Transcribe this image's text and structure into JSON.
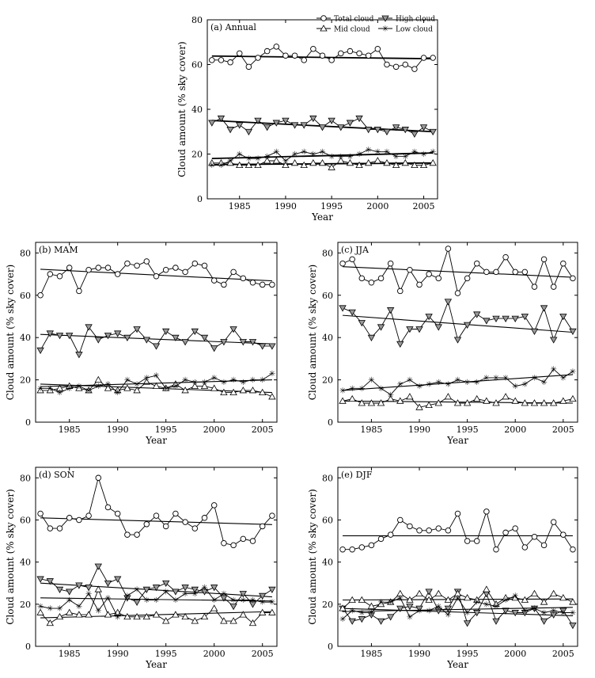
{
  "figure": {
    "ylabel": "Cloud amount (% sky cover)",
    "xlabel": "Year"
  },
  "legend": {
    "items": [
      {
        "name": "Total cloud",
        "marker": "circle"
      },
      {
        "name": "High cloud",
        "marker": "triangle-down"
      },
      {
        "name": "Mid cloud",
        "marker": "triangle-up"
      },
      {
        "name": "Low cloud",
        "marker": "star"
      }
    ]
  },
  "chart_data": [
    {
      "id": "annual",
      "type": "line",
      "title": "(a) Annual",
      "xlabel": "Year",
      "ylabel": "Cloud amount (% sky cover)",
      "xlim": [
        1981.5,
        2006.5
      ],
      "ylim": [
        0,
        80
      ],
      "xticks": [
        1985,
        1990,
        1995,
        2000,
        2005
      ],
      "yticks": [
        0,
        20,
        40,
        60,
        80
      ],
      "x": [
        1982,
        1983,
        1984,
        1985,
        1986,
        1987,
        1988,
        1989,
        1990,
        1991,
        1992,
        1993,
        1994,
        1995,
        1996,
        1997,
        1998,
        1999,
        2000,
        2001,
        2002,
        2003,
        2004,
        2005,
        2006
      ],
      "series": [
        {
          "name": "Total cloud",
          "marker": "circle",
          "values": [
            62,
            62,
            61,
            65,
            59,
            63,
            66,
            68,
            64,
            64,
            62,
            67,
            64,
            62,
            65,
            66,
            65,
            64,
            67,
            60,
            59,
            60,
            58,
            63,
            63
          ],
          "trend": [
            63.8,
            62.6
          ]
        },
        {
          "name": "High cloud",
          "marker": "triangle-down",
          "values": [
            34,
            36,
            31,
            33,
            30,
            35,
            32,
            34,
            35,
            33,
            33,
            36,
            32,
            35,
            32,
            34,
            36,
            31,
            31,
            30,
            32,
            31,
            29,
            32,
            30
          ],
          "trend": [
            35,
            30
          ]
        },
        {
          "name": "Mid cloud",
          "marker": "triangle-up",
          "values": [
            16,
            16,
            16,
            15,
            15,
            15,
            17,
            17,
            15,
            16,
            15,
            16,
            16,
            14,
            17,
            16,
            15,
            16,
            17,
            16,
            15,
            16,
            15,
            15,
            16
          ],
          "trend": [
            15.3,
            16
          ]
        },
        {
          "name": "Low cloud",
          "marker": "star",
          "values": [
            15,
            15,
            17,
            20,
            18,
            18,
            19,
            21,
            17,
            20,
            21,
            20,
            21,
            19,
            19,
            19,
            20,
            22,
            21,
            21,
            19,
            19,
            21,
            20,
            21
          ],
          "trend": [
            18,
            20.5
          ]
        }
      ]
    },
    {
      "id": "mam",
      "type": "line",
      "title": "(b) MAM",
      "xlabel": "Year",
      "ylabel": "Cloud amount (% sky cover)",
      "xlim": [
        1981.5,
        2006.5
      ],
      "ylim": [
        0,
        85
      ],
      "xticks": [
        1985,
        1990,
        1995,
        2000,
        2005
      ],
      "yticks": [
        0,
        20,
        40,
        60,
        80
      ],
      "x": [
        1982,
        1983,
        1984,
        1985,
        1986,
        1987,
        1988,
        1989,
        1990,
        1991,
        1992,
        1993,
        1994,
        1995,
        1996,
        1997,
        1998,
        1999,
        2000,
        2001,
        2002,
        2003,
        2004,
        2005,
        2006
      ],
      "series": [
        {
          "name": "Total cloud",
          "marker": "circle",
          "values": [
            60,
            70,
            69,
            73,
            62,
            72,
            73,
            73,
            70,
            75,
            74,
            76,
            69,
            72,
            73,
            71,
            75,
            74,
            67,
            65,
            71,
            68,
            66,
            65,
            65
          ],
          "trend": [
            72.3,
            66.8
          ]
        },
        {
          "name": "High cloud",
          "marker": "triangle-down",
          "values": [
            34,
            42,
            41,
            41,
            32,
            45,
            39,
            41,
            42,
            40,
            44,
            39,
            36,
            43,
            40,
            38,
            43,
            40,
            35,
            38,
            44,
            38,
            38,
            36,
            36
          ],
          "trend": [
            41.5,
            37
          ]
        },
        {
          "name": "Mid cloud",
          "marker": "triangle-up",
          "values": [
            15,
            15,
            16,
            17,
            16,
            15,
            20,
            16,
            15,
            16,
            15,
            19,
            17,
            16,
            18,
            15,
            17,
            17,
            16,
            14,
            14,
            15,
            15,
            14,
            12
          ],
          "trend": [
            18,
            14
          ]
        },
        {
          "name": "Low cloud",
          "marker": "star",
          "values": [
            16,
            16,
            14,
            16,
            17,
            15,
            17,
            18,
            14,
            20,
            18,
            21,
            22,
            16,
            17,
            20,
            19,
            19,
            21,
            19,
            20,
            19,
            20,
            20,
            23
          ],
          "trend": [
            16.8,
            20
          ]
        }
      ]
    },
    {
      "id": "jja",
      "type": "line",
      "title": "(c) JJA",
      "xlabel": "Year",
      "ylabel": "Cloud amount (% sky cover)",
      "xlim": [
        1981.5,
        2006.5
      ],
      "ylim": [
        0,
        85
      ],
      "xticks": [
        1985,
        1990,
        1995,
        2000,
        2005
      ],
      "yticks": [
        0,
        20,
        40,
        60,
        80
      ],
      "x": [
        1982,
        1983,
        1984,
        1985,
        1986,
        1987,
        1988,
        1989,
        1990,
        1991,
        1992,
        1993,
        1994,
        1995,
        1996,
        1997,
        1998,
        1999,
        2000,
        2001,
        2002,
        2003,
        2004,
        2005,
        2006
      ],
      "series": [
        {
          "name": "Total cloud",
          "marker": "circle",
          "values": [
            75,
            77,
            68,
            66,
            68,
            75,
            62,
            72,
            65,
            70,
            68,
            82,
            61,
            68,
            75,
            71,
            71,
            78,
            71,
            71,
            64,
            77,
            64,
            75,
            68
          ],
          "trend": [
            73.5,
            68.5
          ]
        },
        {
          "name": "High cloud",
          "marker": "triangle-down",
          "values": [
            54,
            52,
            47,
            40,
            45,
            53,
            37,
            44,
            44,
            50,
            45,
            57,
            39,
            46,
            51,
            48,
            49,
            49,
            49,
            50,
            43,
            54,
            39,
            50,
            43
          ],
          "trend": [
            50.5,
            42.5
          ]
        },
        {
          "name": "Mid cloud",
          "marker": "triangle-up",
          "values": [
            10,
            11,
            9,
            9,
            9,
            11,
            10,
            12,
            7,
            8,
            9,
            12,
            9,
            9,
            11,
            10,
            9,
            12,
            10,
            9,
            9,
            9,
            9,
            10,
            11
          ],
          "trend": [
            10,
            9
          ]
        },
        {
          "name": "Low cloud",
          "marker": "star",
          "values": [
            15,
            16,
            16,
            20,
            16,
            13,
            18,
            20,
            17,
            18,
            19,
            18,
            20,
            19,
            19,
            21,
            21,
            21,
            17,
            18,
            21,
            19,
            25,
            21,
            24
          ],
          "trend": [
            15,
            22.5
          ]
        }
      ]
    },
    {
      "id": "son",
      "type": "line",
      "title": "(d) SON",
      "xlabel": "Year",
      "ylabel": "Cloud amount (% sky cover)",
      "xlim": [
        1981.5,
        2006.5
      ],
      "ylim": [
        0,
        85
      ],
      "xticks": [
        1985,
        1990,
        1995,
        2000,
        2005
      ],
      "yticks": [
        0,
        20,
        40,
        60,
        80
      ],
      "x": [
        1982,
        1983,
        1984,
        1985,
        1986,
        1987,
        1988,
        1989,
        1990,
        1991,
        1992,
        1993,
        1994,
        1995,
        1996,
        1997,
        1998,
        1999,
        2000,
        2001,
        2002,
        2003,
        2004,
        2005,
        2006
      ],
      "series": [
        {
          "name": "Total cloud",
          "marker": "circle",
          "values": [
            63,
            56,
            56,
            61,
            60,
            62,
            80,
            66,
            63,
            53,
            53,
            58,
            62,
            57,
            63,
            59,
            56,
            61,
            67,
            49,
            48,
            51,
            50,
            57,
            62
          ],
          "trend": [
            61,
            57.8
          ]
        },
        {
          "name": "High cloud",
          "marker": "triangle-down",
          "values": [
            32,
            31,
            27,
            26,
            29,
            28,
            38,
            30,
            32,
            23,
            21,
            27,
            28,
            30,
            26,
            28,
            27,
            26,
            28,
            23,
            19,
            25,
            20,
            24,
            27
          ],
          "trend": [
            30,
            23.5
          ]
        },
        {
          "name": "Mid cloud",
          "marker": "triangle-up",
          "values": [
            16,
            11,
            14,
            16,
            15,
            15,
            27,
            15,
            16,
            14,
            14,
            14,
            15,
            12,
            15,
            14,
            12,
            14,
            18,
            12,
            12,
            15,
            11,
            16,
            16
          ],
          "trend": [
            13.5,
            16.5
          ]
        },
        {
          "name": "Low cloud",
          "marker": "star",
          "values": [
            19,
            18,
            18,
            22,
            19,
            25,
            17,
            23,
            14,
            24,
            27,
            22,
            22,
            26,
            22,
            25,
            25,
            28,
            22,
            25,
            22,
            22,
            22,
            21,
            21
          ],
          "trend": [
            23,
            21.5
          ]
        }
      ]
    },
    {
      "id": "djf",
      "type": "line",
      "title": "(e) DJF",
      "xlabel": "Year",
      "ylabel": "Cloud amount (% sky cover)",
      "xlim": [
        1981.5,
        2006.5
      ],
      "ylim": [
        0,
        85
      ],
      "xticks": [
        1985,
        1990,
        1995,
        2000,
        2005
      ],
      "yticks": [
        0,
        20,
        40,
        60,
        80
      ],
      "x": [
        1982,
        1983,
        1984,
        1985,
        1986,
        1987,
        1988,
        1989,
        1990,
        1991,
        1992,
        1993,
        1994,
        1995,
        1996,
        1997,
        1998,
        1999,
        2000,
        2001,
        2002,
        2003,
        2004,
        2005,
        2006
      ],
      "series": [
        {
          "name": "Total cloud",
          "marker": "circle",
          "values": [
            46,
            46,
            47,
            48,
            51,
            53,
            60,
            57,
            55,
            55,
            56,
            55,
            63,
            50,
            50,
            64,
            46,
            54,
            56,
            47,
            52,
            48,
            59,
            53,
            46
          ],
          "trend": [
            52.5,
            52.5
          ]
        },
        {
          "name": "High cloud",
          "marker": "triangle-down",
          "values": [
            18,
            12,
            13,
            15,
            12,
            14,
            18,
            19,
            18,
            26,
            17,
            18,
            26,
            11,
            16,
            25,
            12,
            17,
            16,
            16,
            18,
            12,
            15,
            17,
            10
          ],
          "trend": [
            18,
            14.5
          ]
        },
        {
          "name": "Mid cloud",
          "marker": "triangle-up",
          "values": [
            18,
            22,
            22,
            19,
            20,
            21,
            25,
            22,
            25,
            22,
            25,
            22,
            25,
            23,
            22,
            27,
            20,
            23,
            23,
            22,
            25,
            21,
            25,
            23,
            21
          ],
          "trend": [
            22,
            22.5
          ]
        },
        {
          "name": "Low cloud",
          "marker": "star",
          "values": [
            13,
            17,
            16,
            16,
            21,
            21,
            23,
            14,
            17,
            17,
            19,
            15,
            23,
            16,
            21,
            20,
            19,
            22,
            24,
            17,
            18,
            16,
            17,
            16,
            16
          ],
          "trend": [
            16.5,
            18.5
          ]
        }
      ]
    }
  ]
}
